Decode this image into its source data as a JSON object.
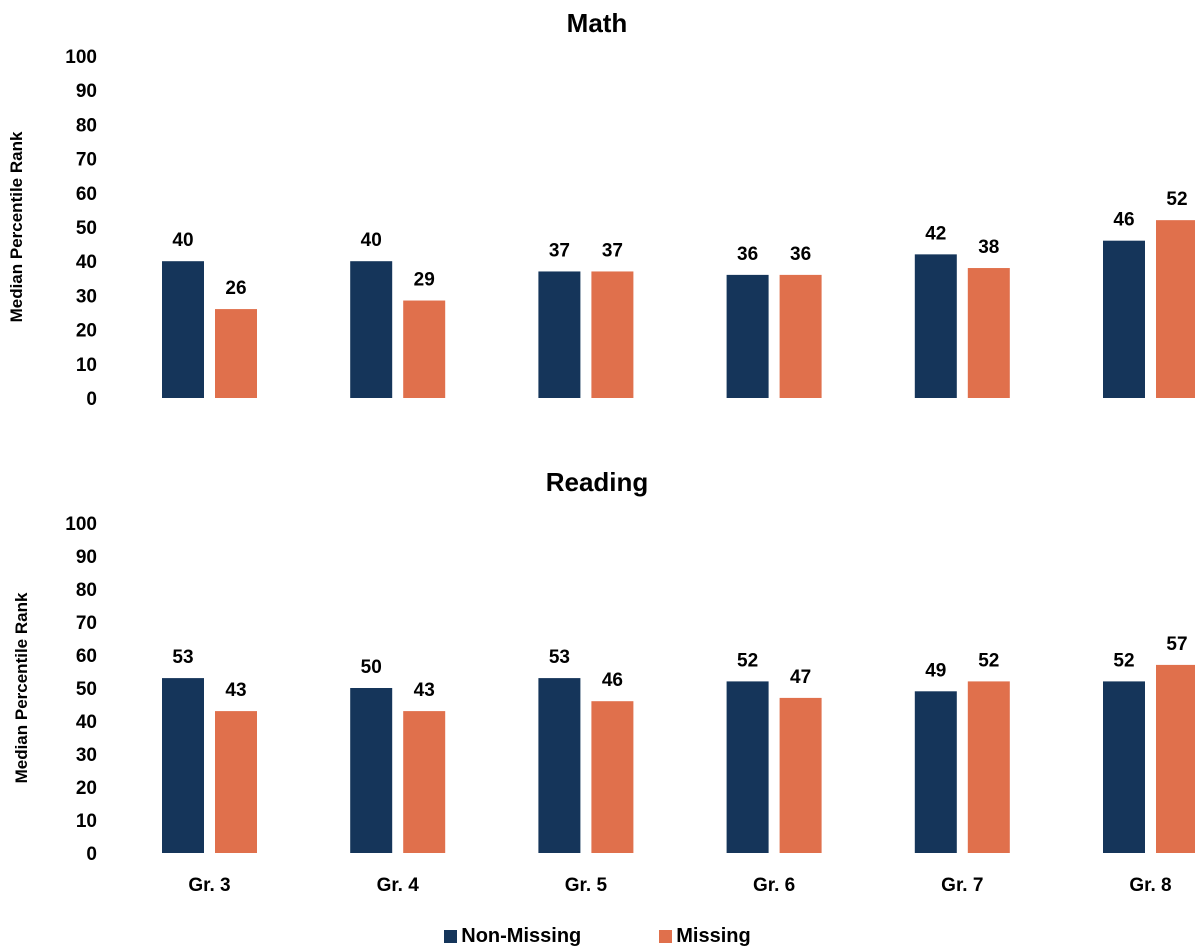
{
  "colors": {
    "non_missing": "#15355A",
    "missing": "#E0704C",
    "text": "#000000"
  },
  "legend": {
    "non_missing_label": "Non-Missing",
    "missing_label": "Missing",
    "placement": "bottom"
  },
  "chart_data": [
    {
      "type": "bar",
      "title": "Math",
      "ylabel": "Median Percentile Rank",
      "ylim": [
        0,
        100
      ],
      "yticks": [
        0,
        10,
        20,
        30,
        40,
        50,
        60,
        70,
        80,
        90,
        100
      ],
      "categories": [
        "Gr. 3",
        "Gr. 4",
        "Gr. 5",
        "Gr. 6",
        "Gr. 7",
        "Gr. 8"
      ],
      "show_category_labels": false,
      "grid": false,
      "series": [
        {
          "name": "Non-Missing",
          "values": [
            40,
            40,
            37,
            36,
            42,
            46
          ],
          "labels": [
            "40",
            "40",
            "37",
            "36",
            "42",
            "46"
          ]
        },
        {
          "name": "Missing",
          "values": [
            26,
            28.5,
            37,
            36,
            38,
            52
          ],
          "labels": [
            "26",
            "29",
            "37",
            "36",
            "38",
            "52"
          ]
        }
      ]
    },
    {
      "type": "bar",
      "title": "Reading",
      "ylabel": "Median Percentile Rank",
      "ylim": [
        0,
        100
      ],
      "yticks": [
        0,
        10,
        20,
        30,
        40,
        50,
        60,
        70,
        80,
        90,
        100
      ],
      "categories": [
        "Gr. 3",
        "Gr. 4",
        "Gr. 5",
        "Gr. 6",
        "Gr. 7",
        "Gr. 8"
      ],
      "show_category_labels": true,
      "grid": false,
      "series": [
        {
          "name": "Non-Missing",
          "values": [
            53,
            50,
            53,
            52,
            49,
            52
          ],
          "labels": [
            "53",
            "50",
            "53",
            "52",
            "49",
            "52"
          ]
        },
        {
          "name": "Missing",
          "values": [
            43,
            43,
            46,
            47,
            52,
            57
          ],
          "labels": [
            "43",
            "43",
            "46",
            "47",
            "52",
            "57"
          ]
        }
      ]
    }
  ]
}
